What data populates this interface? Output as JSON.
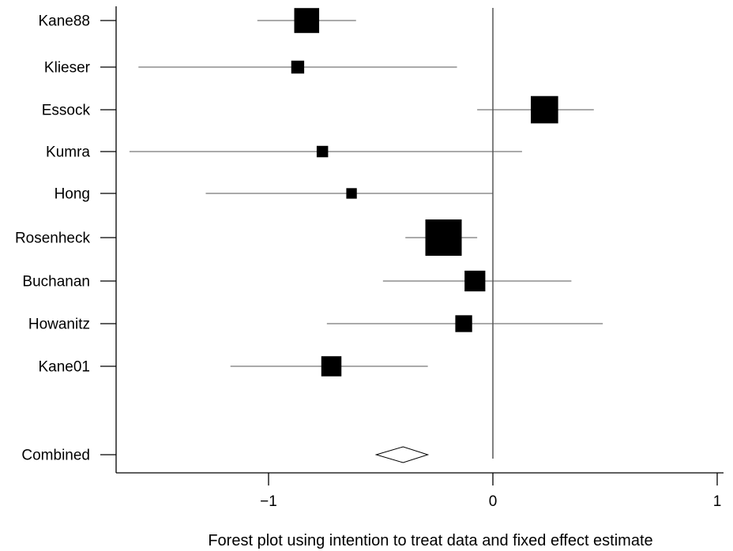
{
  "chart_data": {
    "type": "forest",
    "title": "",
    "xlabel": "Forest plot using intention to treat data and fixed effect estimate",
    "ylabel": "",
    "xlim": [
      -1.62,
      1.0
    ],
    "xticks": [
      -1,
      0,
      1
    ],
    "xtick_labels": [
      "−1",
      "0",
      "1"
    ],
    "reference_line": 0,
    "grid": false,
    "studies": [
      {
        "label": "Kane88",
        "estimate": -0.83,
        "lower": -1.05,
        "upper": -0.61,
        "weight": 0.62
      },
      {
        "label": "Klieser",
        "estimate": -0.87,
        "lower": -1.58,
        "upper": -0.16,
        "weight": 0.22
      },
      {
        "label": "Essock",
        "estimate": 0.23,
        "lower": -0.07,
        "upper": 0.45,
        "weight": 0.7
      },
      {
        "label": "Kumra",
        "estimate": -0.76,
        "lower": -1.62,
        "upper": 0.13,
        "weight": 0.17
      },
      {
        "label": "Hong",
        "estimate": -0.63,
        "lower": -1.28,
        "upper": 0.0,
        "weight": 0.14
      },
      {
        "label": "Rosenheck",
        "estimate": -0.22,
        "lower": -0.39,
        "upper": -0.07,
        "weight": 1.0
      },
      {
        "label": "Buchanan",
        "estimate": -0.08,
        "lower": -0.49,
        "upper": 0.35,
        "weight": 0.48
      },
      {
        "label": "Howanitz",
        "estimate": -0.13,
        "lower": -0.74,
        "upper": 0.49,
        "weight": 0.35
      },
      {
        "label": "Kane01",
        "estimate": -0.72,
        "lower": -1.17,
        "upper": -0.29,
        "weight": 0.46
      }
    ],
    "combined": {
      "label": "Combined",
      "estimate": -0.4,
      "lower": -0.52,
      "upper": -0.29
    }
  }
}
